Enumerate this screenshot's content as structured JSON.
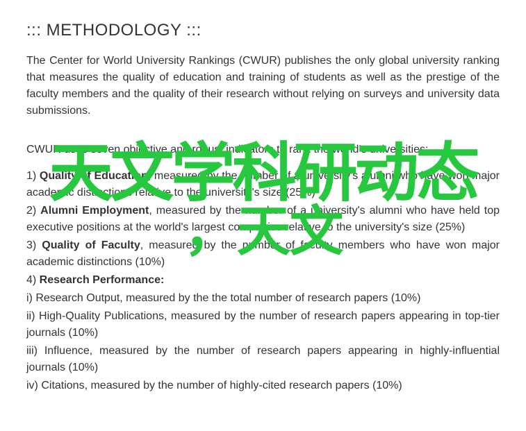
{
  "page": {
    "text_color": "#333333",
    "background_color": "#ffffff",
    "font_family": "Arial, Helvetica, sans-serif",
    "base_font_size": 16
  },
  "heading": {
    "text": "::: METHODOLOGY :::",
    "font_size": 24,
    "font_weight": 400
  },
  "intro": "The Center for World University Rankings (CWUR) publishes the only global university ranking that measures the quality of education and training of students as well as the prestige of the faculty members and the quality of their research without relying on surveys and university data submissions.",
  "subheading": "CWUR uses seven objective and robust indicators to rank the world's universities:",
  "indicators": [
    {
      "num": "1) ",
      "title": "Quality of Education",
      "body": ", measured by the number of a university's alumni who have won major academic distinctions relative to the university's size (25%)"
    },
    {
      "num": "2) ",
      "title": "Alumni Employment",
      "body": ", measured by the number of a university's alumni who have held top executive positions at the world's largest companies relative to the university's size (25%)"
    },
    {
      "num": "3) ",
      "title": "Quality of Faculty",
      "body": ", measured by the number of faculty members who have won major academic distinctions (10%)"
    },
    {
      "num": "4) ",
      "title": "Research Performance:",
      "body": ""
    }
  ],
  "sub_items": [
    "i) Research Output, measured by the the total number of research papers (10%)",
    "ii) High-Quality Publications, measured by the number of research papers appearing in top-tier journals (10%)",
    "iii) Influence, measured by the number of research papers appearing in highly-influential journals (10%)",
    "iv) Citations, measured by the number of highly-cited research papers (10%)"
  ],
  "watermark": {
    "line1": "天文学科研动态",
    "line2": "，天文",
    "color": "#27c840",
    "line1_font_size": 92,
    "line2_font_size": 78,
    "font_weight": 700
  }
}
